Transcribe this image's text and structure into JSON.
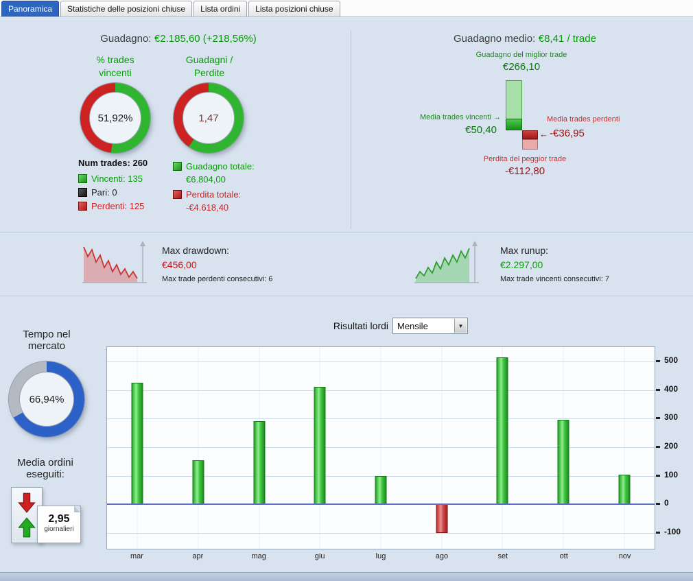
{
  "icons": {
    "arrow_right": "→",
    "arrow_left": "←",
    "caret_down": "▼"
  },
  "tabs": {
    "items": [
      {
        "label": "Panoramica"
      },
      {
        "label": "Statistiche delle posizioni chiuse"
      },
      {
        "label": "Lista ordini"
      },
      {
        "label": "Lista posizioni chiuse"
      }
    ]
  },
  "overview": {
    "gain_label": "Guadagno:",
    "gain_value": "€2.185,60 (+218,56%)",
    "donut_win": {
      "title": "% trades\nvincenti"
    },
    "donut_ratio": {
      "title": "Guadagni /\nPerdite"
    },
    "num_trades": "Num trades: 260",
    "legend": {
      "win": "Vincenti: 135",
      "even": "Pari: 0",
      "loss": "Perdenti: 125"
    },
    "totals": {
      "gain_label": "Guadagno totale:",
      "gain_value": "€6.804,00",
      "loss_label": "Perdita totale:",
      "loss_value": "-€4.618,40"
    }
  },
  "average": {
    "header_label": "Guadagno medio:",
    "header_value": "€8,41 / trade",
    "best_trade_label": "Guadagno del miglior trade",
    "best_trade_value": "€266,10",
    "avg_win_label": "Media trades vincenti",
    "avg_win_value": "€50,40",
    "avg_loss_label": "Media trades perdenti",
    "avg_loss_value": "-€36,95",
    "worst_trade_label": "Perdita del peggior trade",
    "worst_trade_value": "-€112,80"
  },
  "drawdown": {
    "label": "Max drawdown:",
    "value": "€456,00",
    "sub": "Max trade perdenti consecutivi: 6"
  },
  "runup": {
    "label": "Max runup:",
    "value": "€2.297,00",
    "sub": "Max trade vincenti consecutivi: 7"
  },
  "market_time": {
    "title": "Tempo nel\nmercato"
  },
  "avg_orders": {
    "title": "Media ordini\neseguiti:",
    "value": "2,95",
    "unit": "giornalieri"
  },
  "results": {
    "label": "Risultati lordi",
    "period": "Mensile"
  },
  "colors": {
    "positive": "#2fb52f",
    "negative": "#cc2222",
    "accent_blue": "#2d66c0"
  },
  "chart_data": [
    {
      "type": "donut",
      "title": "% trades vincenti",
      "center_label": "51,92%",
      "segments": [
        {
          "label": "vincenti",
          "value": 51.92,
          "color": "#2fb52f"
        },
        {
          "label": "perdenti",
          "value": 48.08,
          "color": "#cc2222"
        }
      ]
    },
    {
      "type": "donut",
      "title": "Guadagni / Perdite",
      "center_label": "1,47",
      "segments": [
        {
          "label": "guadagno totale",
          "value": 59.6,
          "color": "#2fb52f"
        },
        {
          "label": "perdita totale",
          "value": 40.4,
          "color": "#cc2222"
        }
      ]
    },
    {
      "type": "donut",
      "title": "Tempo nel mercato",
      "center_label": "66,94%",
      "segments": [
        {
          "label": "nel mercato",
          "value": 66.94,
          "color": "#2c62c8"
        },
        {
          "label": "fuori mercato",
          "value": 33.06,
          "color": "#b4bac2"
        }
      ]
    },
    {
      "type": "bar",
      "title": "Risultati lordi",
      "period": "Mensile",
      "categories": [
        "mar",
        "apr",
        "mag",
        "giu",
        "lug",
        "ago",
        "set",
        "ott",
        "nov"
      ],
      "values": [
        425,
        155,
        290,
        410,
        100,
        -100,
        515,
        295,
        105
      ],
      "yticks": [
        500,
        400,
        300,
        200,
        100,
        0,
        -100
      ],
      "ylim": [
        -155,
        550
      ],
      "positive_color": "#2fb52f",
      "negative_color": "#cc2222",
      "grid": true,
      "legend": "none"
    }
  ]
}
